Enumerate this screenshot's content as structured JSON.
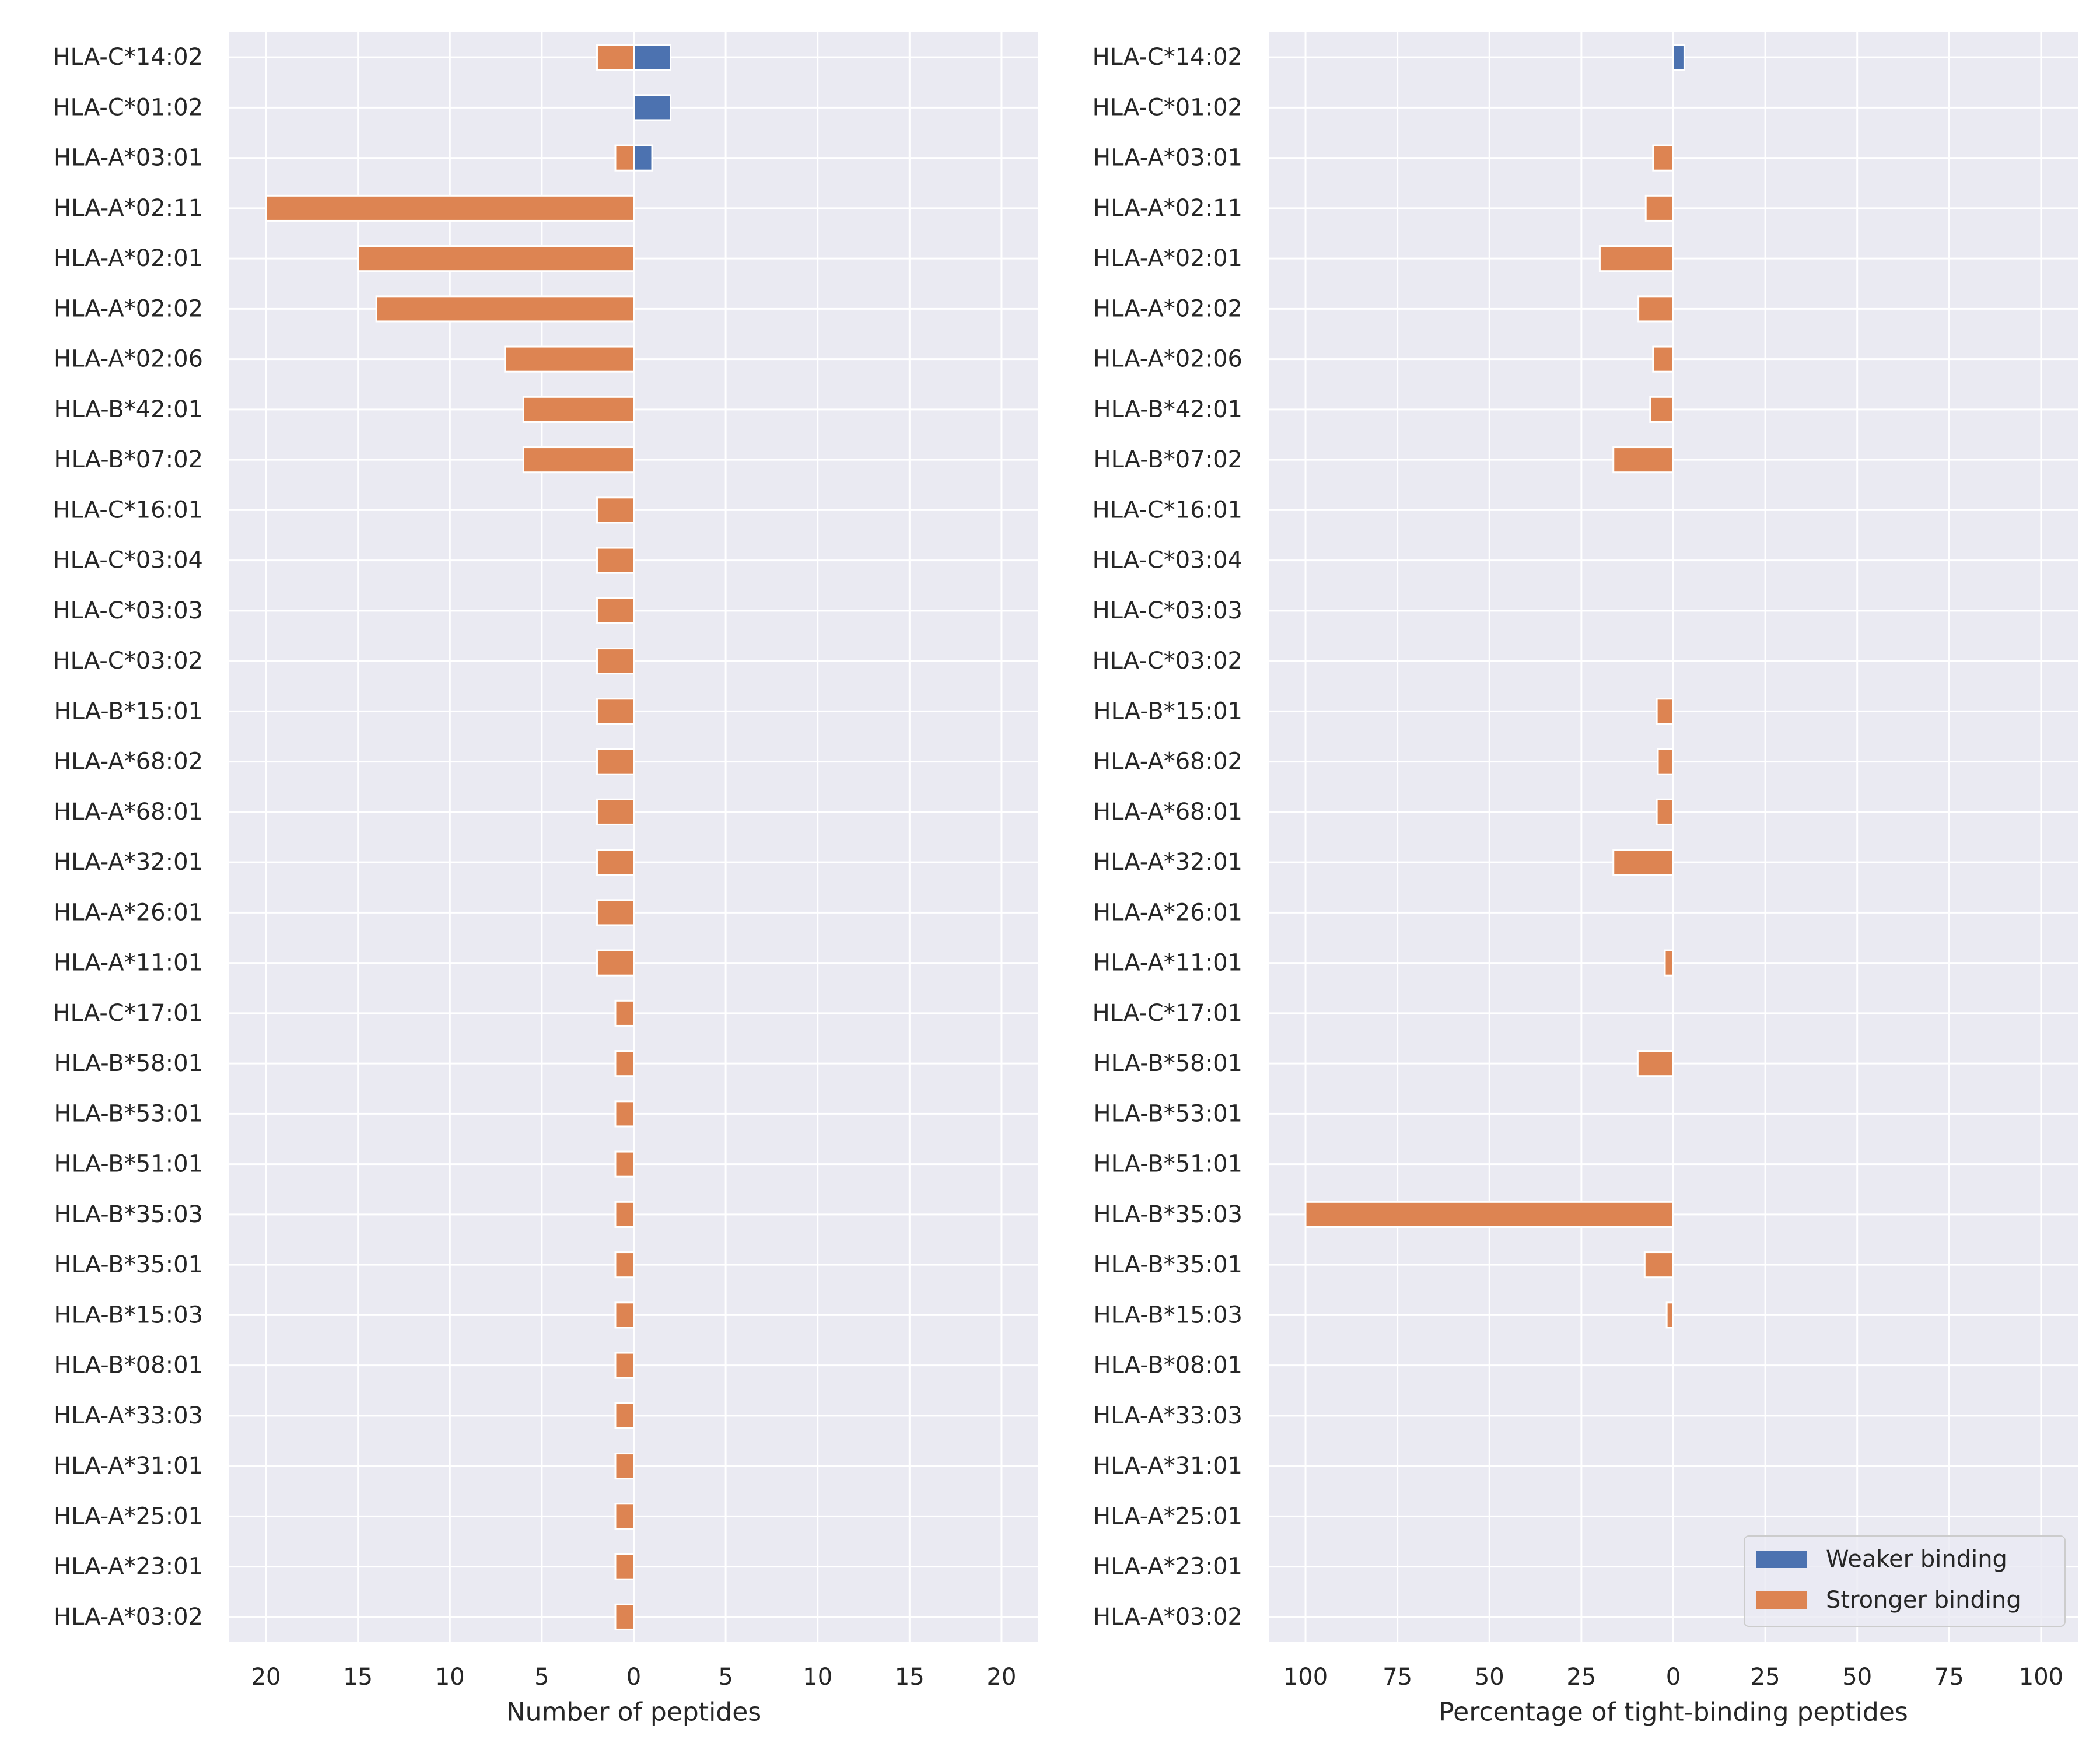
{
  "chart_data": [
    {
      "type": "bar",
      "orientation": "horizontal",
      "xlabel": "Number of peptides",
      "ylabel": "",
      "xlim": [
        -22,
        22
      ],
      "x_ticks": [
        -20,
        -15,
        -10,
        -5,
        0,
        5,
        10,
        15,
        20
      ],
      "x_tick_labels": [
        "20",
        "15",
        "10",
        "5",
        "0",
        "5",
        "10",
        "15",
        "20"
      ],
      "grid": true,
      "categories": [
        "HLA-C*14:02",
        "HLA-C*01:02",
        "HLA-A*03:01",
        "HLA-A*02:11",
        "HLA-A*02:01",
        "HLA-A*02:02",
        "HLA-A*02:06",
        "HLA-B*42:01",
        "HLA-B*07:02",
        "HLA-C*16:01",
        "HLA-C*03:04",
        "HLA-C*03:03",
        "HLA-C*03:02",
        "HLA-B*15:01",
        "HLA-A*68:02",
        "HLA-A*68:01",
        "HLA-A*32:01",
        "HLA-A*26:01",
        "HLA-A*11:01",
        "HLA-C*17:01",
        "HLA-B*58:01",
        "HLA-B*53:01",
        "HLA-B*51:01",
        "HLA-B*35:03",
        "HLA-B*35:01",
        "HLA-B*15:03",
        "HLA-B*08:01",
        "HLA-A*33:03",
        "HLA-A*31:01",
        "HLA-A*25:01",
        "HLA-A*23:01",
        "HLA-A*03:02"
      ],
      "series": [
        {
          "name": "Weaker binding",
          "color": "#4c72b0",
          "values": [
            2,
            2,
            1,
            0,
            0,
            0,
            0,
            0,
            0,
            0,
            0,
            0,
            0,
            0,
            0,
            0,
            0,
            0,
            0,
            0,
            0,
            0,
            0,
            0,
            0,
            0,
            0,
            0,
            0,
            0,
            0,
            0
          ]
        },
        {
          "name": "Stronger binding",
          "color": "#dd8452",
          "values": [
            -2,
            0,
            -1,
            -20,
            -15,
            -14,
            -7,
            -6,
            -6,
            -2,
            -2,
            -2,
            -2,
            -2,
            -2,
            -2,
            -2,
            -2,
            -2,
            -1,
            -1,
            -1,
            -1,
            -1,
            -1,
            -1,
            -1,
            -1,
            -1,
            -1,
            -1,
            -1
          ]
        }
      ]
    },
    {
      "type": "bar",
      "orientation": "horizontal",
      "xlabel": "Percentage of tight-binding peptides",
      "ylabel": "",
      "xlim": [
        -110,
        110
      ],
      "x_ticks": [
        -100,
        -75,
        -50,
        -25,
        0,
        25,
        50,
        75,
        100
      ],
      "x_tick_labels": [
        "100",
        "75",
        "50",
        "25",
        "0",
        "25",
        "50",
        "75",
        "100"
      ],
      "grid": true,
      "legend": {
        "placement": "lower-right",
        "entries": [
          "Weaker binding",
          "Stronger binding"
        ]
      },
      "categories": [
        "HLA-C*14:02",
        "HLA-C*01:02",
        "HLA-A*03:01",
        "HLA-A*02:11",
        "HLA-A*02:01",
        "HLA-A*02:02",
        "HLA-A*02:06",
        "HLA-B*42:01",
        "HLA-B*07:02",
        "HLA-C*16:01",
        "HLA-C*03:04",
        "HLA-C*03:03",
        "HLA-C*03:02",
        "HLA-B*15:01",
        "HLA-A*68:02",
        "HLA-A*68:01",
        "HLA-A*32:01",
        "HLA-A*26:01",
        "HLA-A*11:01",
        "HLA-C*17:01",
        "HLA-B*58:01",
        "HLA-B*53:01",
        "HLA-B*51:01",
        "HLA-B*35:03",
        "HLA-B*35:01",
        "HLA-B*15:03",
        "HLA-B*08:01",
        "HLA-A*33:03",
        "HLA-A*31:01",
        "HLA-A*25:01",
        "HLA-A*23:01",
        "HLA-A*03:02"
      ],
      "series": [
        {
          "name": "Weaker binding",
          "color": "#4c72b0",
          "values": [
            3,
            0,
            0,
            0,
            0,
            0,
            0,
            0,
            0,
            0,
            0,
            0,
            0,
            0,
            0,
            0,
            0,
            0,
            0,
            0,
            0,
            0,
            0,
            0,
            0,
            0,
            0,
            0,
            0,
            0,
            0,
            0
          ]
        },
        {
          "name": "Stronger binding",
          "color": "#dd8452",
          "values": [
            0,
            0,
            -5.5,
            -7.5,
            -20,
            -9.5,
            -5.5,
            -6.3,
            -16.3,
            0,
            0,
            0,
            0,
            -4.5,
            -4.2,
            -4.5,
            -16.3,
            0,
            -2.3,
            0,
            -9.7,
            0,
            0,
            -100,
            -7.8,
            -1.8,
            0,
            0,
            0,
            0,
            0,
            0
          ]
        }
      ]
    }
  ]
}
